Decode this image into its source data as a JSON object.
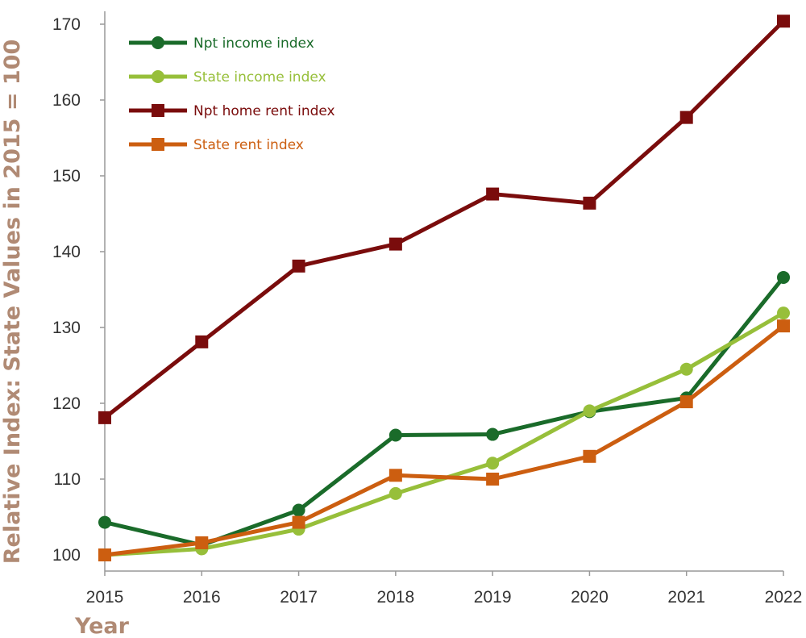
{
  "chart_data": {
    "type": "line",
    "title": "",
    "xlabel": "Year",
    "ylabel": "Relative Index: State Values in 2015 = 100",
    "x": [
      2015,
      2016,
      2017,
      2018,
      2019,
      2020,
      2021,
      2022
    ],
    "x_tick_labels": [
      "2015",
      "2016",
      "2017",
      "2018",
      "2019",
      "2020",
      "2021",
      "2022"
    ],
    "y_tick_labels": [
      "100",
      "110",
      "120",
      "130",
      "140",
      "150",
      "160",
      "170"
    ],
    "ylim": [
      100,
      170
    ],
    "grid": false,
    "legend_position": "top-left",
    "series": [
      {
        "name": "Npt income index",
        "color": "#1a6b2a",
        "marker": "circle",
        "values": [
          104.3,
          101.3,
          105.9,
          115.8,
          115.9,
          118.9,
          120.7,
          136.6
        ]
      },
      {
        "name": "State income index",
        "color": "#97bf3a",
        "marker": "circle",
        "values": [
          100.0,
          100.8,
          103.4,
          108.1,
          112.1,
          119.0,
          124.5,
          131.9
        ]
      },
      {
        "name": "Npt home rent index",
        "color": "#7a0c0c",
        "marker": "square",
        "values": [
          118.1,
          128.1,
          138.1,
          141.0,
          147.6,
          146.4,
          157.7,
          170.4
        ]
      },
      {
        "name": "State rent index",
        "color": "#cc5e10",
        "marker": "square",
        "values": [
          100.0,
          101.6,
          104.3,
          110.5,
          110.0,
          113.0,
          120.2,
          130.2
        ]
      }
    ]
  }
}
